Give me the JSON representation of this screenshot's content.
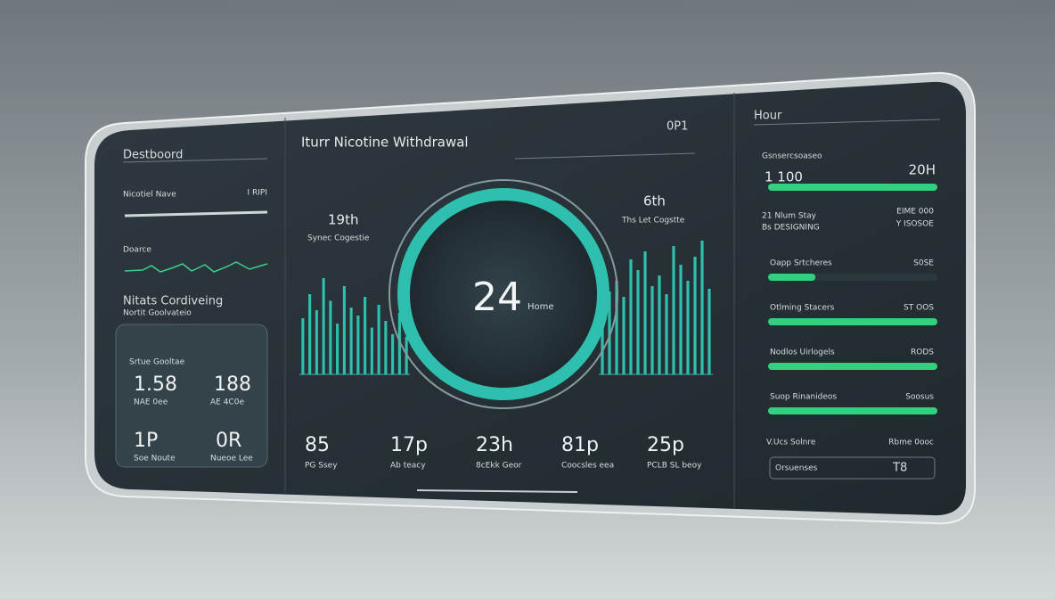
{
  "left": {
    "title": "Destboord",
    "row1": {
      "label": "Nicotiel Nave",
      "value": "I RIPI"
    },
    "row2": {
      "label": "Doarce"
    },
    "section": "Nitats Cordiveing",
    "section_sub": "Nortit Goolvateio",
    "card": {
      "header": "Srtue Gooltae",
      "a": "1.58",
      "a_sub": "NAE 0ee",
      "b": "188",
      "b_sub": "AE 4C0e",
      "c": "1P",
      "c_sub": "Soe Noute",
      "d": "0R",
      "d_sub": "Nueoe Lee"
    }
  },
  "center": {
    "title": "Iturr Nicotine Withdrawal",
    "time": "0P1",
    "left_stat": {
      "value": "19th",
      "label": "Synec Cogestie"
    },
    "right_stat": {
      "value": "6th",
      "label": "Ths Let Cogstte"
    },
    "gauge": {
      "value": "24",
      "label": "Home"
    },
    "bars_left": [
      42,
      60,
      48,
      72,
      55,
      38,
      66,
      50,
      44,
      58,
      35,
      52,
      40,
      30,
      46,
      28
    ],
    "bars_right": [
      48,
      62,
      70,
      58,
      86,
      78,
      92,
      66,
      74,
      60,
      96,
      82,
      70,
      88,
      100,
      64
    ],
    "stats": [
      {
        "value": "85",
        "sub": "PG Ssey"
      },
      {
        "value": "17p",
        "sub": "Ab teacy"
      },
      {
        "value": "23h",
        "sub": "8cEkk Geor"
      },
      {
        "value": "81p",
        "sub": "Coocsles eea"
      },
      {
        "value": "25p",
        "sub": "PCLB SL beoy"
      }
    ]
  },
  "right": {
    "title": "Hour",
    "top": {
      "label": "Gsnsercsoaseo",
      "a": "1 100",
      "b": "20H",
      "progress": 100
    },
    "mid": {
      "a": "21 Nlum Stay",
      "a_sub": "Bs DESIGNING",
      "b": "EIME 000",
      "b_sub": "Y ISOSOE"
    },
    "rows": [
      {
        "label": "Oapp Srtcheres",
        "value": "S0SE",
        "progress": 28
      },
      {
        "label": "Otlming Stacers",
        "value": "ST OOS",
        "progress": 100
      },
      {
        "label": "Nodlos Uirlogels",
        "value": "RODS",
        "progress": 100
      },
      {
        "label": "Suop Rinanideos",
        "value": "Soosus",
        "progress": 100
      }
    ],
    "footer": {
      "label": "V.Ucs Solnre",
      "value": "Rbme 0ooc",
      "box_label": "Orsuenses",
      "box_value": "T8"
    }
  }
}
